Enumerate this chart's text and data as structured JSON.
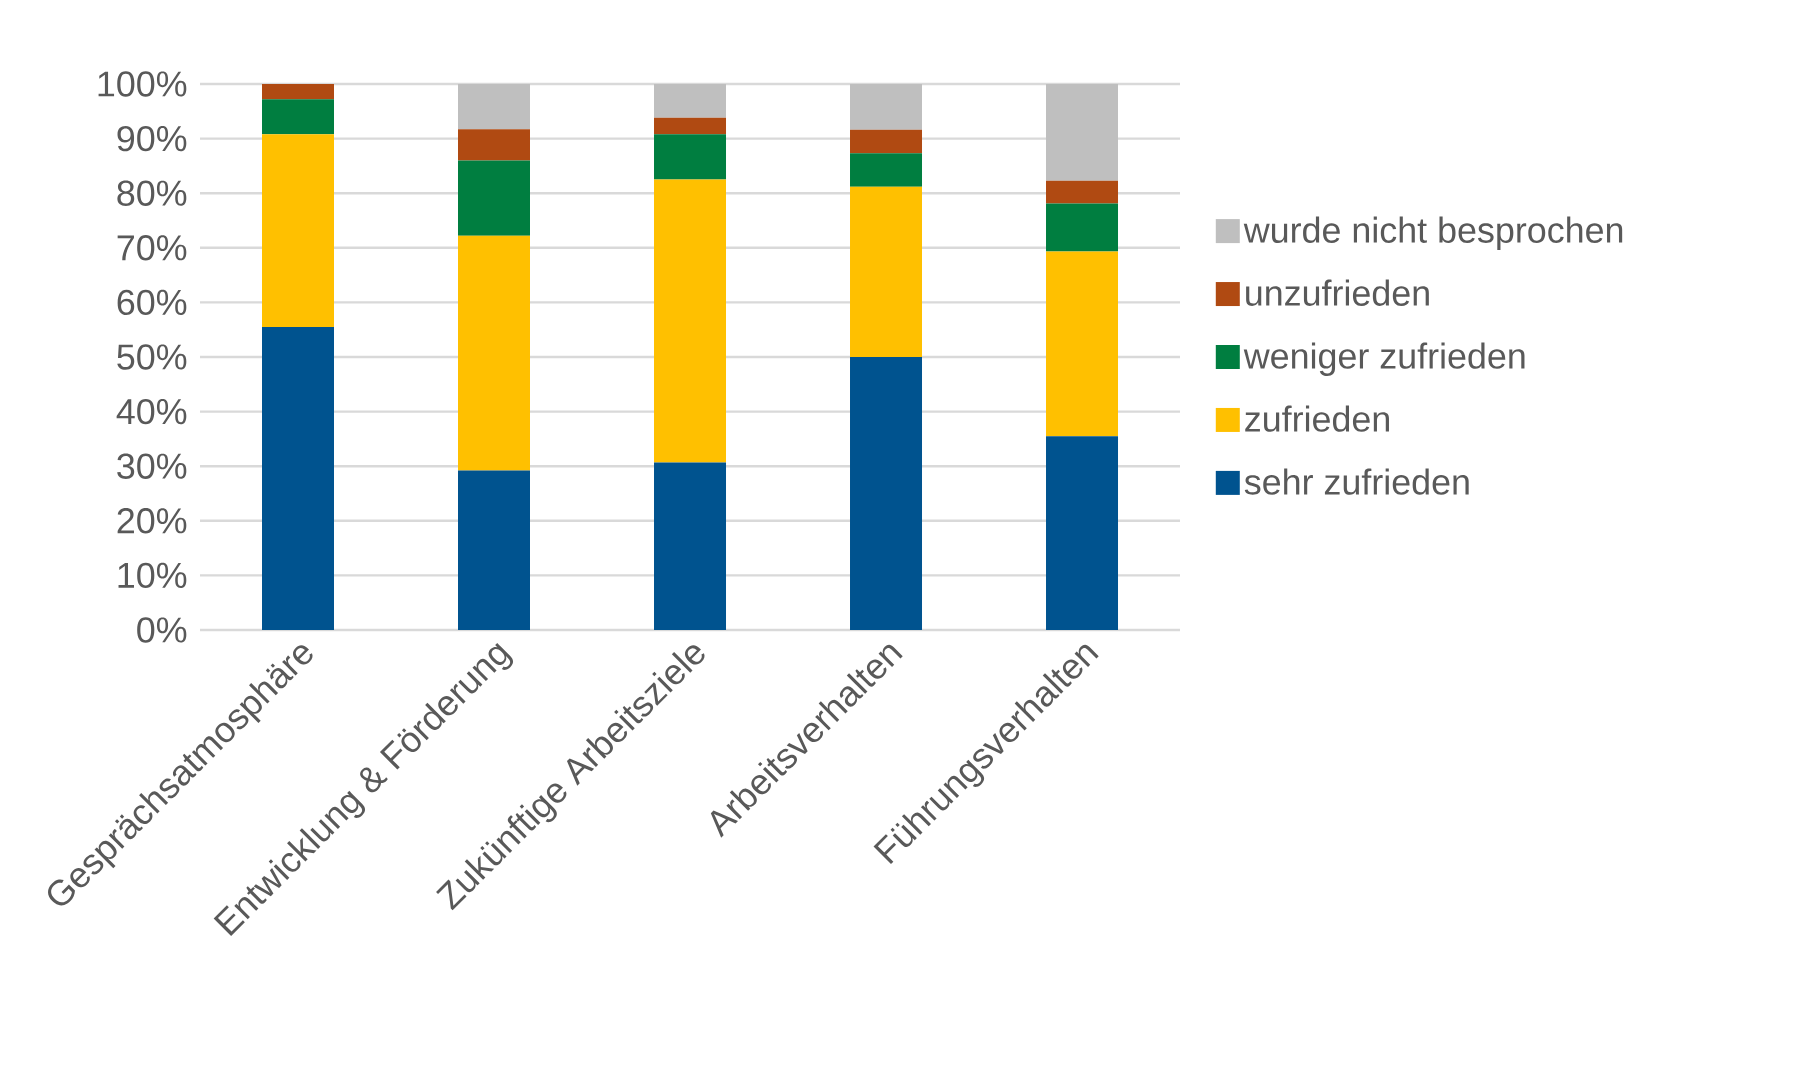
{
  "chart_data": {
    "type": "bar",
    "stacked": true,
    "categories": [
      "Gesprächsatmosphäre",
      "Entwicklung & Förderung",
      "Zukünftige Arbeitsziele",
      "Arbeitsverhalten",
      "Führungsverhalten"
    ],
    "series": [
      {
        "name": "sehr zufrieden",
        "color": "#00538f",
        "values": [
          55.5,
          29.2,
          30.7,
          50.0,
          35.5
        ]
      },
      {
        "name": "zufrieden",
        "color": "#ffc000",
        "values": [
          35.3,
          43.0,
          51.8,
          31.2,
          33.8
        ]
      },
      {
        "name": "weniger zufrieden",
        "color": "#007e40",
        "values": [
          6.4,
          13.8,
          8.3,
          6.1,
          8.8
        ]
      },
      {
        "name": "unzufrieden",
        "color": "#b04a12",
        "values": [
          2.8,
          5.7,
          3.0,
          4.3,
          4.2
        ]
      },
      {
        "name": "wurde nicht besprochen",
        "color": "#bfbfbf",
        "values": [
          0,
          8.3,
          6.2,
          8.4,
          17.7
        ]
      }
    ],
    "ylim": [
      0,
      100
    ],
    "yticks": [
      {
        "value": 0,
        "label": "0%"
      },
      {
        "value": 10,
        "label": "10%"
      },
      {
        "value": 20,
        "label": "20%"
      },
      {
        "value": 30,
        "label": "30%"
      },
      {
        "value": 40,
        "label": "40%"
      },
      {
        "value": 50,
        "label": "50%"
      },
      {
        "value": 60,
        "label": "60%"
      },
      {
        "value": 70,
        "label": "70%"
      },
      {
        "value": 80,
        "label": "80%"
      },
      {
        "value": 90,
        "label": "90%"
      },
      {
        "value": 100,
        "label": "100%"
      }
    ],
    "grid": "y",
    "legend": "right"
  }
}
